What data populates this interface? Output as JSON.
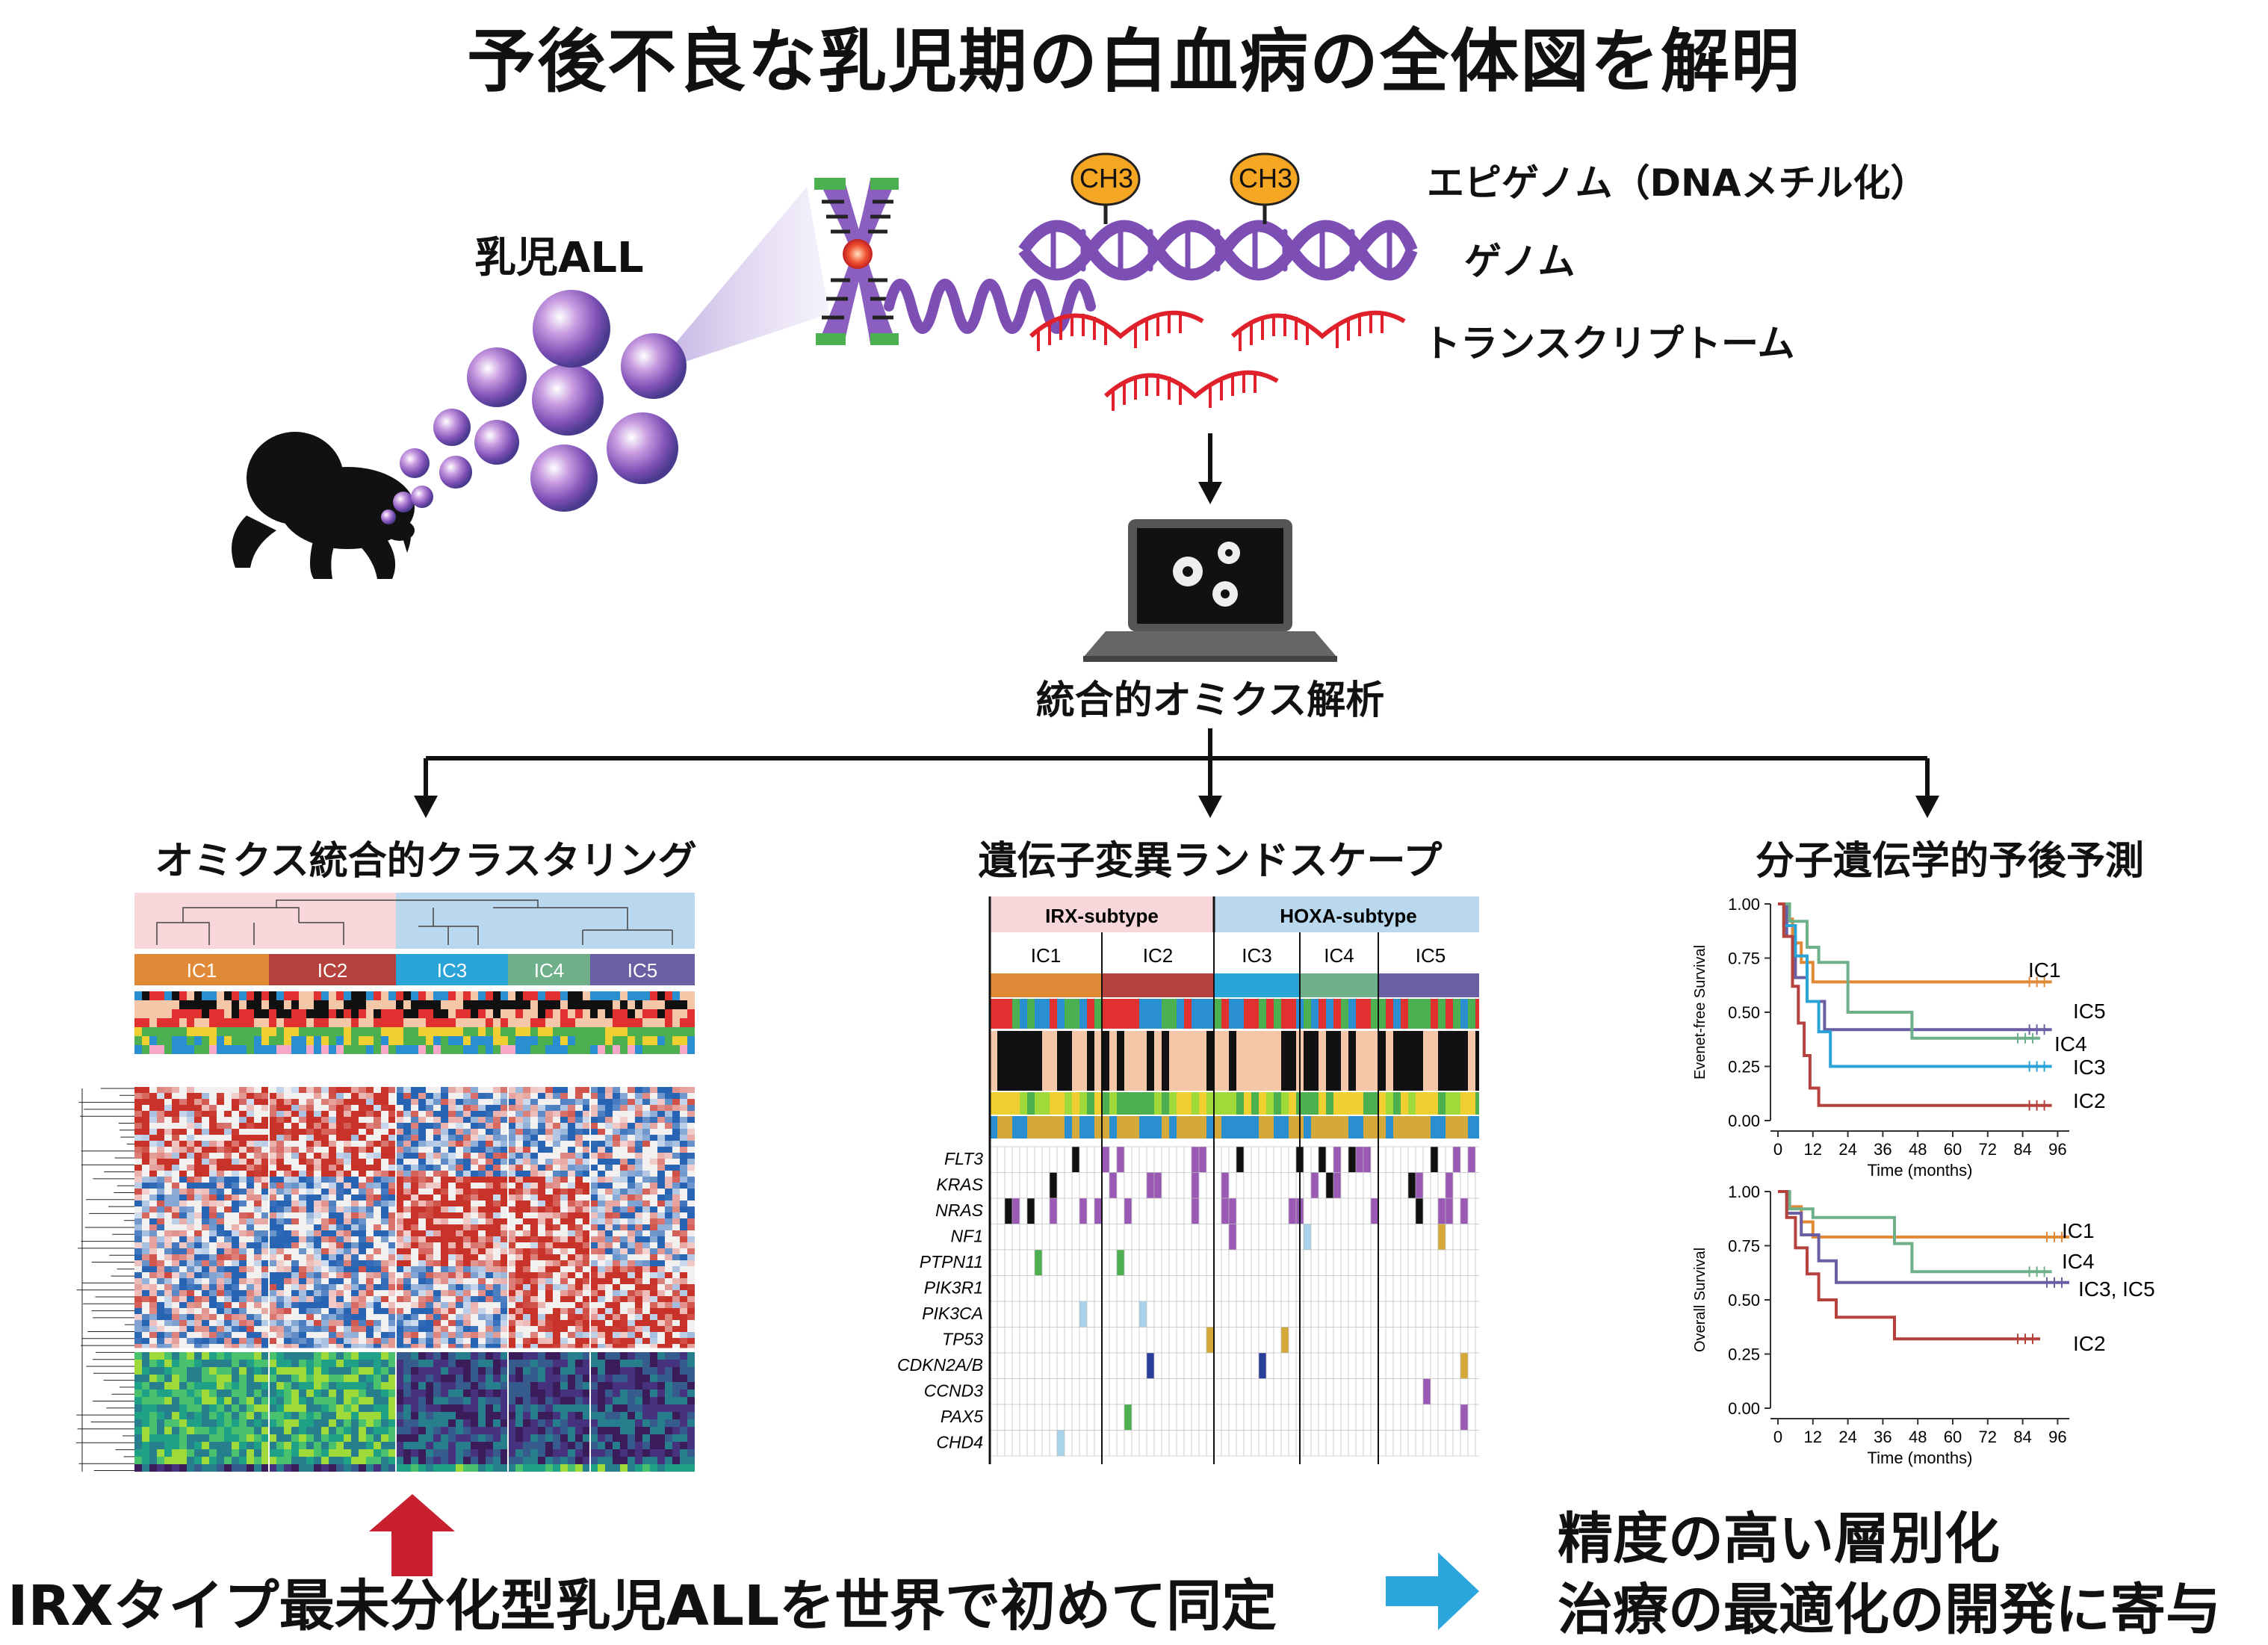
{
  "title": "予後不良な乳児期の白血病の全体図を解明",
  "infant_label": "乳児ALL",
  "methyl_label": "CH3",
  "omics": {
    "epigenome": "エピゲノム（DNAメチル化）",
    "genome": "ゲノム",
    "transcriptome": "トランスクリプトーム"
  },
  "analysis_label": "統合的オミクス解析",
  "sections": {
    "clustering": "オミクス統合的クラスタリング",
    "landscape": "遺伝子変異ランドスケープ",
    "prognosis": "分子遺伝学的予後予測"
  },
  "clusters": [
    "IC1",
    "IC2",
    "IC3",
    "IC4",
    "IC5"
  ],
  "subtypes": {
    "irx": "IRX-subtype",
    "hoxa": "HOXA-subtype"
  },
  "genes": [
    "FLT3",
    "KRAS",
    "NRAS",
    "NF1",
    "PTPN11",
    "PIK3R1",
    "PIK3CA",
    "TP53",
    "CDKN2A/B",
    "CCND3",
    "PAX5",
    "CHD4"
  ],
  "colors": {
    "IC1": "#e08a38",
    "IC2": "#b5423c",
    "IC3": "#2aa3d6",
    "IC4": "#6fb08a",
    "IC5": "#6a5fa3",
    "irx_bg": "#f7d7d9",
    "hoxa_bg": "#b9d8ee",
    "arrow_red": "#c8202f",
    "arrow_blue": "#2aa6dc",
    "mut_purple": "#9b59b6"
  },
  "chart_data": [
    {
      "type": "line",
      "title": "",
      "ylabel": "Evenet-free Survival",
      "xlabel": "Time (months)",
      "xticks": [
        0,
        12,
        24,
        36,
        48,
        60,
        72,
        84,
        96
      ],
      "yticks": [
        "0.00",
        "0.25",
        "0.50",
        "0.75",
        "1.00"
      ],
      "xlim": [
        0,
        100
      ],
      "ylim": [
        0,
        1
      ],
      "series": [
        {
          "name": "IC1",
          "points": [
            [
              0,
              1
            ],
            [
              3,
              0.93
            ],
            [
              5,
              0.82
            ],
            [
              8,
              0.73
            ],
            [
              12,
              0.64
            ],
            [
              94,
              0.64
            ]
          ]
        },
        {
          "name": "IC5",
          "points": [
            [
              0,
              1
            ],
            [
              3,
              0.85
            ],
            [
              6,
              0.66
            ],
            [
              10,
              0.55
            ],
            [
              16,
              0.42
            ],
            [
              94,
              0.42
            ]
          ]
        },
        {
          "name": "IC4",
          "points": [
            [
              0,
              1
            ],
            [
              4,
              0.92
            ],
            [
              10,
              0.8
            ],
            [
              14,
              0.73
            ],
            [
              24,
              0.5
            ],
            [
              46,
              0.38
            ],
            [
              90,
              0.38
            ]
          ]
        },
        {
          "name": "IC3",
          "points": [
            [
              0,
              1
            ],
            [
              2,
              0.9
            ],
            [
              6,
              0.76
            ],
            [
              10,
              0.55
            ],
            [
              14,
              0.41
            ],
            [
              18,
              0.25
            ],
            [
              94,
              0.25
            ]
          ]
        },
        {
          "name": "IC2",
          "points": [
            [
              0,
              1
            ],
            [
              2,
              0.85
            ],
            [
              5,
              0.62
            ],
            [
              7,
              0.45
            ],
            [
              9,
              0.3
            ],
            [
              11,
              0.15
            ],
            [
              14,
              0.07
            ],
            [
              94,
              0.07
            ]
          ]
        }
      ]
    },
    {
      "type": "line",
      "title": "",
      "ylabel": "Overall Survival",
      "xlabel": "Time (months)",
      "xticks": [
        0,
        12,
        24,
        36,
        48,
        60,
        72,
        84,
        96
      ],
      "yticks": [
        "0.00",
        "0.25",
        "0.50",
        "0.75",
        "1.00"
      ],
      "xlim": [
        0,
        100
      ],
      "ylim": [
        0,
        1
      ],
      "series": [
        {
          "name": "IC1",
          "points": [
            [
              0,
              1
            ],
            [
              4,
              0.93
            ],
            [
              8,
              0.86
            ],
            [
              12,
              0.79
            ],
            [
              100,
              0.79
            ]
          ]
        },
        {
          "name": "IC4",
          "points": [
            [
              0,
              1
            ],
            [
              4,
              0.92
            ],
            [
              12,
              0.88
            ],
            [
              40,
              0.76
            ],
            [
              46,
              0.63
            ],
            [
              94,
              0.63
            ]
          ]
        },
        {
          "name": "IC3, IC5",
          "points": [
            [
              0,
              1
            ],
            [
              3,
              0.9
            ],
            [
              8,
              0.8
            ],
            [
              14,
              0.68
            ],
            [
              20,
              0.58
            ],
            [
              100,
              0.58
            ]
          ]
        },
        {
          "name": "IC2",
          "points": [
            [
              0,
              1
            ],
            [
              3,
              0.88
            ],
            [
              6,
              0.74
            ],
            [
              10,
              0.62
            ],
            [
              14,
              0.5
            ],
            [
              20,
              0.42
            ],
            [
              40,
              0.32
            ],
            [
              90,
              0.32
            ]
          ]
        }
      ]
    }
  ],
  "bottom": {
    "left": "IRXタイプ最未分化型乳児ALLを世界で初めて同定",
    "right_line1": "精度の高い層別化",
    "right_line2": "治療の最適化の開発に寄与"
  }
}
